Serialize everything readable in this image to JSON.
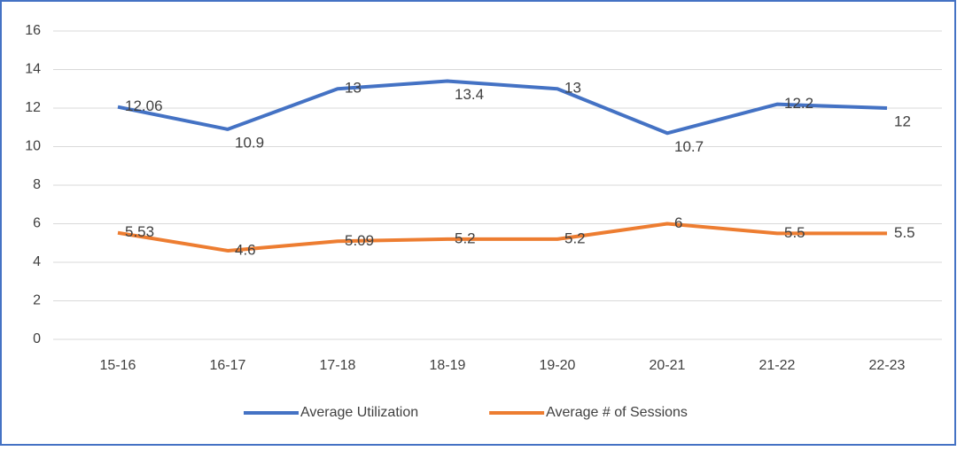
{
  "chart_data": {
    "type": "line",
    "categories": [
      "15-16",
      "16-17",
      "17-18",
      "18-19",
      "19-20",
      "20-21",
      "21-22",
      "22-23"
    ],
    "series": [
      {
        "name": "Average Utilization",
        "color": "#4472c4",
        "values": [
          12.06,
          10.9,
          13,
          13.4,
          13,
          10.7,
          12.2,
          12
        ]
      },
      {
        "name": "Average # of Sessions",
        "color": "#ed7d31",
        "values": [
          5.53,
          4.6,
          5.09,
          5.2,
          5.2,
          6,
          5.5,
          5.5
        ]
      }
    ],
    "ylim": [
      0,
      16
    ],
    "yticks": [
      0,
      2,
      4,
      6,
      8,
      10,
      12,
      14,
      16
    ],
    "grid": true,
    "legend": "bottom"
  }
}
